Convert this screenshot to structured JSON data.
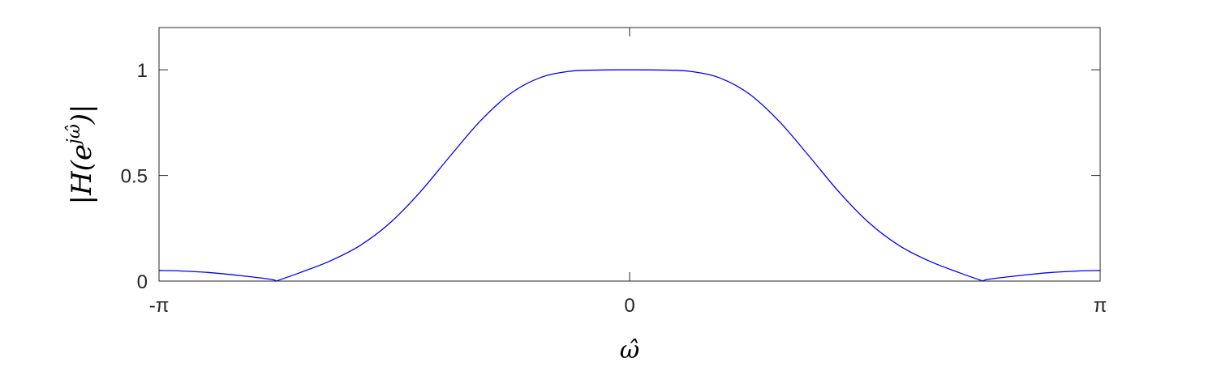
{
  "chart_data": {
    "type": "line",
    "title": "",
    "xlabel": "ω̂",
    "ylabel": "|H(e^{jω̂})|",
    "ylabel_parts": {
      "open": "|H(",
      "base": "e",
      "exp": "jω̂",
      "close": ")|"
    },
    "xlim": [
      -3.14159,
      3.14159
    ],
    "ylim": [
      0,
      1.2
    ],
    "x_ticks": [
      {
        "value": -3.14159,
        "label": "-π"
      },
      {
        "value": 0,
        "label": "0"
      },
      {
        "value": 3.14159,
        "label": "π"
      }
    ],
    "y_ticks": [
      {
        "value": 0,
        "label": "0"
      },
      {
        "value": 0.5,
        "label": "0.5"
      },
      {
        "value": 1,
        "label": "1"
      }
    ],
    "grid": false,
    "box": true,
    "series": [
      {
        "color": "#0000ff",
        "x": [
          -3.1416,
          -3.0,
          -2.8,
          -2.6,
          -2.4,
          -2.36,
          -2.2,
          -2.0,
          -1.8,
          -1.6,
          -1.4,
          -1.2,
          -1.0,
          -0.8,
          -0.6,
          -0.4,
          -0.2,
          0.0,
          0.2,
          0.4,
          0.6,
          0.8,
          1.0,
          1.2,
          1.4,
          1.6,
          1.8,
          2.0,
          2.2,
          2.36,
          2.4,
          2.6,
          2.8,
          3.0,
          3.1416
        ],
        "y": [
          0.05,
          0.048,
          0.04,
          0.026,
          0.009,
          0.0,
          0.04,
          0.095,
          0.168,
          0.275,
          0.42,
          0.59,
          0.755,
          0.885,
          0.962,
          0.993,
          0.999,
          1.0,
          0.999,
          0.993,
          0.962,
          0.885,
          0.755,
          0.59,
          0.42,
          0.275,
          0.168,
          0.095,
          0.04,
          0.0,
          0.009,
          0.026,
          0.04,
          0.048,
          0.05
        ]
      }
    ]
  }
}
